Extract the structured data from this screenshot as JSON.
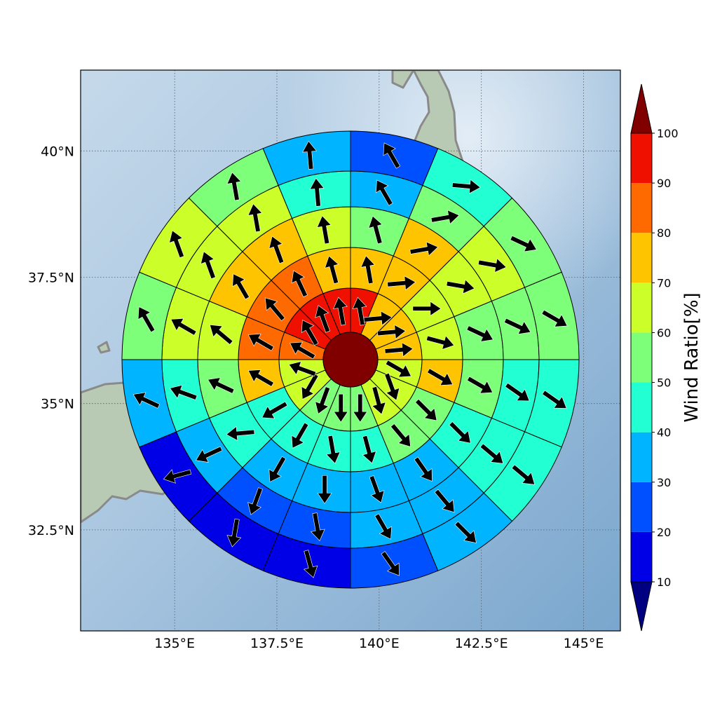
{
  "map": {
    "lon_range": [
      132.7,
      145.9
    ],
    "lat_range": [
      30.5,
      41.6
    ],
    "center_lon": 139.25,
    "center_lat": 36.0,
    "x_ticks": [
      "135°E",
      "137.5°E",
      "140°E",
      "142.5°E",
      "145°E"
    ],
    "x_tick_values": [
      135,
      137.5,
      140,
      142.5,
      145
    ],
    "y_ticks": [
      "40°N",
      "37.5°N",
      "35°N",
      "32.5°N"
    ],
    "y_tick_values": [
      40,
      37.5,
      35,
      32.5
    ],
    "grid": "dotted",
    "background": "shaded-relief"
  },
  "chart_data": {
    "type": "polar-sector-heatmap",
    "sectors_per_ring": 16,
    "sector_start": "north",
    "sector_direction": "clockwise",
    "center_value": 100,
    "rings": [
      {
        "ring": 1,
        "values": [
          92,
          70,
          70,
          70,
          68,
          64,
          60,
          58,
          58,
          58,
          60,
          62,
          86,
          92,
          90,
          92
        ],
        "arrow_dirs": [
          350,
          85,
          85,
          85,
          120,
          160,
          165,
          180,
          180,
          200,
          210,
          290,
          300,
          330,
          340,
          350
        ]
      },
      {
        "ring": 2,
        "values": [
          72,
          72,
          62,
          66,
          72,
          58,
          50,
          46,
          40,
          42,
          46,
          72,
          82,
          82,
          84,
          72
        ],
        "arrow_dirs": [
          350,
          85,
          90,
          105,
          120,
          135,
          140,
          165,
          170,
          210,
          240,
          300,
          300,
          320,
          335,
          345
        ]
      },
      {
        "ring": 3,
        "values": [
          56,
          72,
          62,
          56,
          52,
          44,
          38,
          38,
          38,
          38,
          46,
          58,
          68,
          72,
          72,
          62
        ],
        "arrow_dirs": [
          345,
          80,
          100,
          115,
          120,
          135,
          145,
          160,
          180,
          210,
          265,
          295,
          310,
          330,
          340,
          350
        ]
      },
      {
        "ring": 4,
        "values": [
          34,
          52,
          60,
          56,
          46,
          42,
          36,
          32,
          24,
          24,
          32,
          46,
          60,
          64,
          62,
          44
        ],
        "arrow_dirs": [
          330,
          80,
          100,
          115,
          125,
          130,
          140,
          150,
          170,
          200,
          245,
          290,
          300,
          340,
          350,
          355
        ]
      },
      {
        "ring": 5,
        "values": [
          20,
          44,
          54,
          56,
          42,
          40,
          36,
          28,
          18,
          16,
          16,
          32,
          58,
          62,
          56,
          38
        ],
        "arrow_dirs": [
          330,
          95,
          115,
          120,
          125,
          130,
          135,
          145,
          165,
          190,
          255,
          295,
          330,
          340,
          350,
          355
        ]
      }
    ],
    "colorbar": {
      "label": "Wind Ratio[%]",
      "ticks": [
        "10",
        "20",
        "30",
        "40",
        "50",
        "60",
        "70",
        "80",
        "90",
        "100"
      ],
      "boundaries": [
        10,
        20,
        30,
        40,
        50,
        60,
        70,
        80,
        90,
        100
      ],
      "extend": "both",
      "under_color": "#000080",
      "over_color": "#800000",
      "colors": [
        "#0000e6",
        "#0050ff",
        "#00b4ff",
        "#22ffd2",
        "#7dff7a",
        "#ccff2a",
        "#ffc400",
        "#ff6a00",
        "#f01000"
      ]
    }
  }
}
